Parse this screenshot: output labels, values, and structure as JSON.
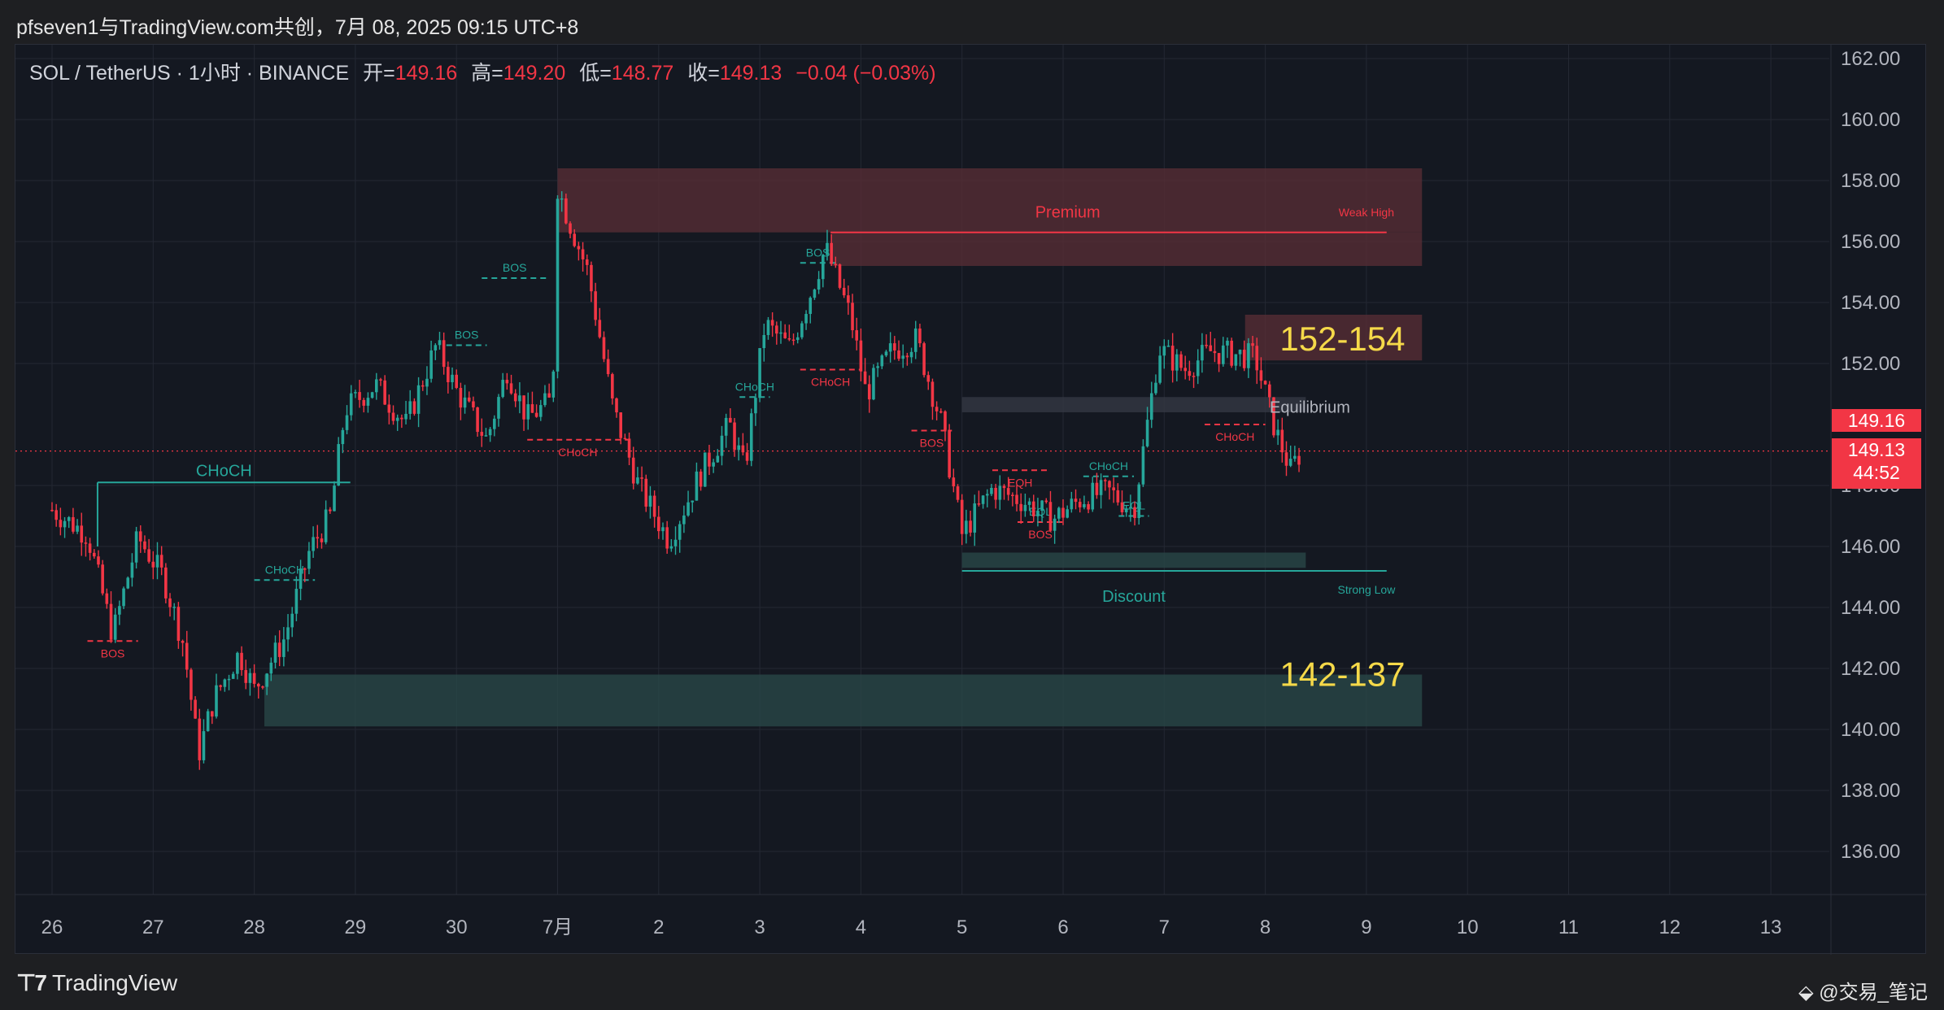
{
  "header": {
    "title": "pfseven1与TradingView.com共创，7月 08, 2025 09:15 UTC+8"
  },
  "legend": {
    "symbol": "SOL / TetherUS · 1小时 · BINANCE",
    "open_label": "开=",
    "open_value": "149.16",
    "high_label": "高=",
    "high_value": "149.20",
    "low_label": "低=",
    "low_value": "148.77",
    "close_label": "收=",
    "close_value": "149.13",
    "change": "−0.04 (−0.03%)"
  },
  "price_labels": {
    "last_price": "149.16",
    "close_price": "149.13",
    "countdown": "44:52"
  },
  "footer": {
    "brand": "TradingView",
    "watermark": "@交易_笔记"
  },
  "colors": {
    "up": "#26a69a",
    "down": "#f23645",
    "background": "#141821",
    "grid": "#242833",
    "premium_zone": "#5a2d35",
    "discount_zone": "#2a4a4a",
    "highlight_text": "#f5d949"
  },
  "chart_data": {
    "type": "candlestick",
    "title": "",
    "xlabel": "",
    "ylabel": "",
    "ylim": [
      134.5,
      162.5
    ],
    "grid": true,
    "y_ticks": [
      "162.00",
      "160.00",
      "158.00",
      "156.00",
      "154.00",
      "152.00",
      "148.00",
      "146.00",
      "144.00",
      "142.00",
      "140.00",
      "138.00",
      "136.00"
    ],
    "x_ticks": [
      "26",
      "27",
      "28",
      "29",
      "30",
      "7月",
      "2",
      "3",
      "4",
      "5",
      "6",
      "7",
      "8",
      "9",
      "10",
      "11",
      "12",
      "13"
    ],
    "price_path": [
      {
        "day": 0.0,
        "price": 147.2
      },
      {
        "day": 0.35,
        "price": 146.4
      },
      {
        "day": 0.6,
        "price": 143.1
      },
      {
        "day": 0.85,
        "price": 146.3
      },
      {
        "day": 1.1,
        "price": 145.0
      },
      {
        "day": 1.3,
        "price": 142.8
      },
      {
        "day": 1.45,
        "price": 139.2
      },
      {
        "day": 1.6,
        "price": 141.0
      },
      {
        "day": 1.85,
        "price": 142.5
      },
      {
        "day": 2.0,
        "price": 141.3
      },
      {
        "day": 2.3,
        "price": 143.0
      },
      {
        "day": 2.55,
        "price": 145.9
      },
      {
        "day": 2.75,
        "price": 147.0
      },
      {
        "day": 2.9,
        "price": 150.5
      },
      {
        "day": 3.2,
        "price": 151.3
      },
      {
        "day": 3.5,
        "price": 150.0
      },
      {
        "day": 3.8,
        "price": 152.6
      },
      {
        "day": 4.0,
        "price": 151.1
      },
      {
        "day": 4.3,
        "price": 149.5
      },
      {
        "day": 4.5,
        "price": 151.8
      },
      {
        "day": 4.7,
        "price": 150.2
      },
      {
        "day": 4.95,
        "price": 150.8
      },
      {
        "day": 5.0,
        "price": 157.8
      },
      {
        "day": 5.1,
        "price": 156.8
      },
      {
        "day": 5.3,
        "price": 155.0
      },
      {
        "day": 5.55,
        "price": 150.5
      },
      {
        "day": 5.8,
        "price": 148.0
      },
      {
        "day": 6.1,
        "price": 146.2
      },
      {
        "day": 6.4,
        "price": 148.3
      },
      {
        "day": 6.7,
        "price": 150.0
      },
      {
        "day": 6.85,
        "price": 148.5
      },
      {
        "day": 7.05,
        "price": 153.3
      },
      {
        "day": 7.3,
        "price": 152.5
      },
      {
        "day": 7.5,
        "price": 154.3
      },
      {
        "day": 7.65,
        "price": 155.8
      },
      {
        "day": 7.9,
        "price": 153.5
      },
      {
        "day": 8.05,
        "price": 151.0
      },
      {
        "day": 8.3,
        "price": 152.4
      },
      {
        "day": 8.55,
        "price": 152.8
      },
      {
        "day": 8.8,
        "price": 150.0
      },
      {
        "day": 9.0,
        "price": 146.4
      },
      {
        "day": 9.3,
        "price": 147.9
      },
      {
        "day": 9.6,
        "price": 147.5
      },
      {
        "day": 9.9,
        "price": 146.9
      },
      {
        "day": 10.2,
        "price": 147.6
      },
      {
        "day": 10.45,
        "price": 147.8
      },
      {
        "day": 10.7,
        "price": 147.2
      },
      {
        "day": 10.95,
        "price": 152.5
      },
      {
        "day": 11.2,
        "price": 151.8
      },
      {
        "day": 11.45,
        "price": 152.4
      },
      {
        "day": 11.7,
        "price": 152.3
      },
      {
        "day": 11.9,
        "price": 152.2
      },
      {
        "day": 12.1,
        "price": 149.8
      },
      {
        "day": 12.25,
        "price": 148.5
      },
      {
        "day": 12.35,
        "price": 149.1
      }
    ],
    "zones": [
      {
        "label": "Premium",
        "type": "premium",
        "x0": 5.0,
        "x1": 13.55,
        "y0": 156.3,
        "y1": 158.4
      },
      {
        "label": "",
        "type": "premium",
        "x0": 7.7,
        "x1": 13.55,
        "y0": 155.2,
        "y1": 156.3
      },
      {
        "label": "152-154",
        "type": "premium",
        "x0": 11.8,
        "x1": 13.55,
        "y0": 152.1,
        "y1": 153.6
      },
      {
        "label": "Equilibrium",
        "type": "equilibrium",
        "x0": 9.0,
        "x1": 12.4,
        "y0": 150.4,
        "y1": 150.9
      },
      {
        "label": "",
        "type": "discount",
        "x0": 9.0,
        "x1": 12.4,
        "y0": 145.3,
        "y1": 145.8
      },
      {
        "label": "142-137",
        "type": "discount",
        "x0": 2.1,
        "x1": 13.55,
        "y0": 140.1,
        "y1": 141.8
      }
    ],
    "levels": [
      {
        "label": "Weak High",
        "x0": 7.7,
        "x1": 13.2,
        "y": 156.3,
        "color": "down"
      },
      {
        "label": "Strong Low",
        "x0": 9.0,
        "x1": 13.2,
        "y": 145.2,
        "color": "up"
      },
      {
        "label": "CHoCH",
        "x0": 0.45,
        "x1": 2.95,
        "y": 148.1,
        "color": "up",
        "solid": true
      },
      {
        "label": "BOS",
        "x0": 0.35,
        "x1": 0.85,
        "y": 142.9,
        "color": "down"
      },
      {
        "label": "CHoCH",
        "x0": 2.0,
        "x1": 2.6,
        "y": 144.9,
        "color": "up"
      },
      {
        "label": "BOS",
        "x0": 4.25,
        "x1": 4.9,
        "y": 154.8,
        "color": "up"
      },
      {
        "label": "BOS",
        "x0": 3.9,
        "x1": 4.3,
        "y": 152.6,
        "color": "up"
      },
      {
        "label": "CHoCH",
        "x0": 4.7,
        "x1": 5.7,
        "y": 149.5,
        "color": "down"
      },
      {
        "label": "CHoCH",
        "x0": 6.8,
        "x1": 7.1,
        "y": 150.9,
        "color": "up"
      },
      {
        "label": "BOS",
        "x0": 7.4,
        "x1": 7.75,
        "y": 155.3,
        "color": "up"
      },
      {
        "label": "CHoCH",
        "x0": 7.4,
        "x1": 8.0,
        "y": 151.8,
        "color": "down"
      },
      {
        "label": "BOS",
        "x0": 8.5,
        "x1": 8.9,
        "y": 149.8,
        "color": "down"
      },
      {
        "label": "EQH",
        "x0": 9.3,
        "x1": 9.85,
        "y": 148.5,
        "color": "down"
      },
      {
        "label": "EQL",
        "x0": 9.55,
        "x1": 10.0,
        "y": 146.8,
        "color": "up"
      },
      {
        "label": "BOS",
        "x0": 9.55,
        "x1": 10.0,
        "y": 146.8,
        "color": "down"
      },
      {
        "label": "CHoCH",
        "x0": 10.2,
        "x1": 10.7,
        "y": 148.3,
        "color": "up"
      },
      {
        "label": "EQL",
        "x0": 10.55,
        "x1": 10.85,
        "y": 147.0,
        "color": "up"
      },
      {
        "label": "CHoCH",
        "x0": 11.4,
        "x1": 12.0,
        "y": 150.0,
        "color": "down"
      }
    ],
    "current_price": 149.13
  }
}
